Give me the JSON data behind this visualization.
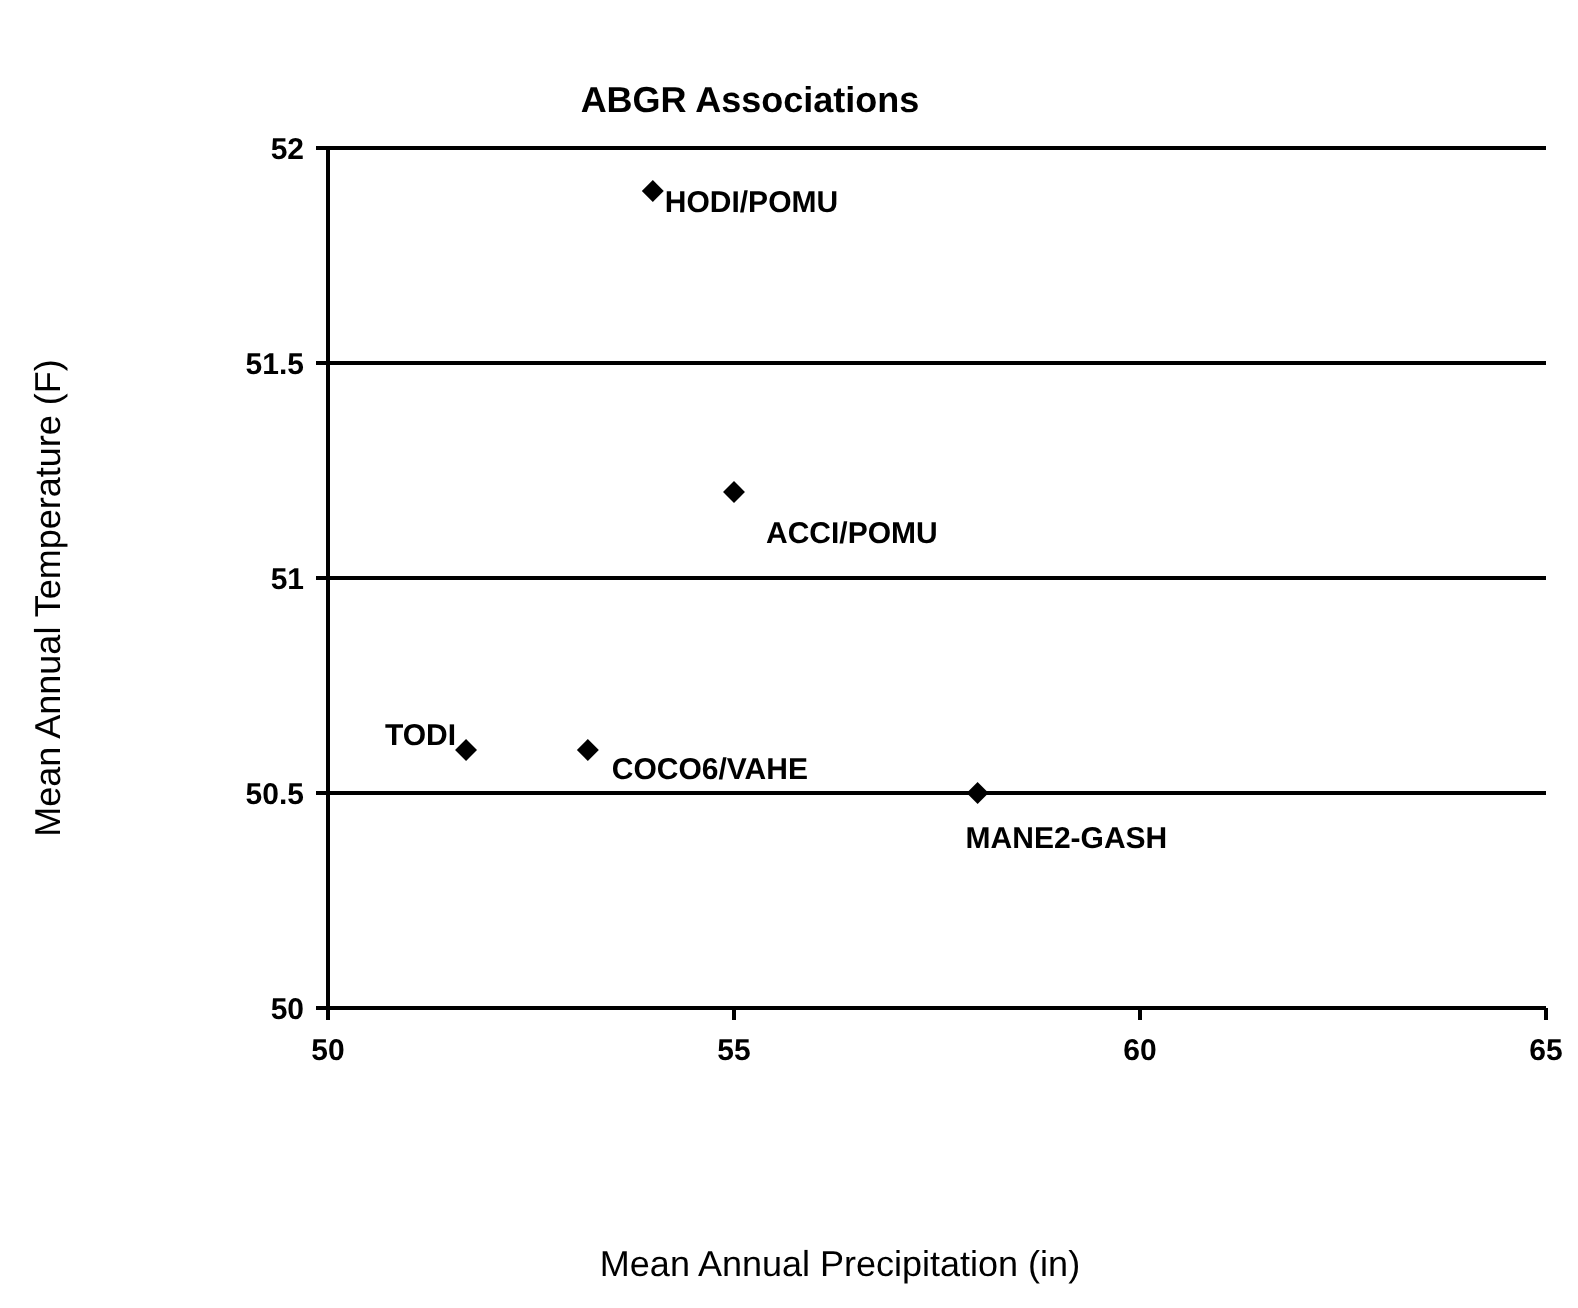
{
  "chart_data": {
    "type": "scatter",
    "title": "ABGR Associations",
    "xlabel": "Mean Annual Precipitation (in)",
    "ylabel": "Mean Annual Temperature (F)",
    "x": [
      54.0,
      55.0,
      51.7,
      53.2,
      58.0
    ],
    "series": [
      {
        "color": "#000000",
        "values": [
          51.9,
          51.2,
          50.6,
          50.6,
          50.5
        ]
      }
    ],
    "xlim": [
      50,
      65
    ],
    "xticks": [
      50,
      55,
      60,
      65
    ],
    "ylim": [
      50,
      52
    ],
    "yticks": [
      50,
      50.5,
      51,
      51.5,
      52
    ],
    "grid": "y",
    "marker": "diamond",
    "annotations": [
      {
        "text": "HODI/POMU",
        "x": 54.0,
        "y": 51.9
      },
      {
        "text": "ACCI/POMU",
        "x": 55.0,
        "y": 51.2
      },
      {
        "text": "TODI",
        "x": 51.7,
        "y": 50.6
      },
      {
        "text": "COCO6/VAHE",
        "x": 53.2,
        "y": 50.6
      },
      {
        "text": "MANE2-GASH",
        "x": 58.0,
        "y": 50.5
      }
    ]
  }
}
